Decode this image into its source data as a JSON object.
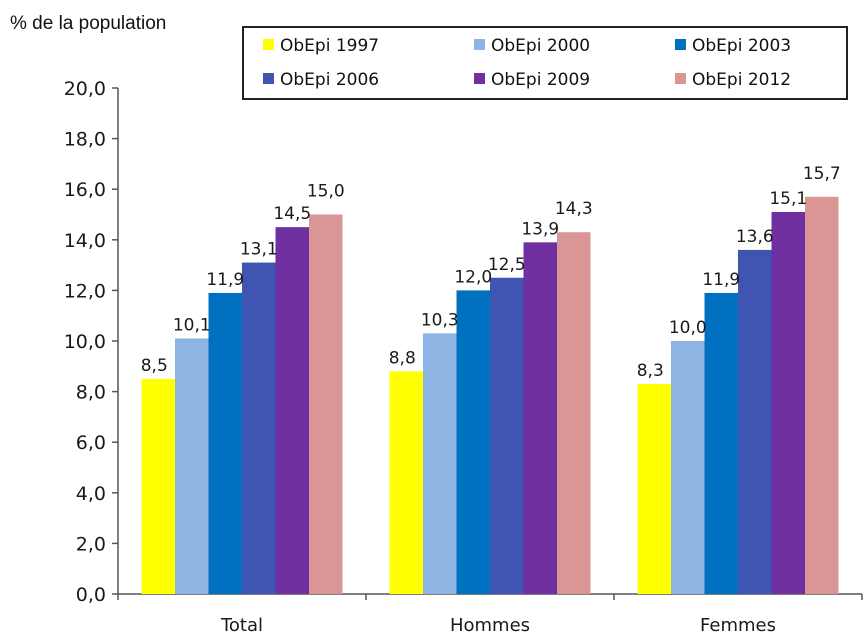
{
  "chart_data": {
    "type": "bar",
    "title": "",
    "ylabel": "% de la population",
    "xlabel": "",
    "ylim": [
      0,
      20
    ],
    "yticks": [
      "0,0",
      "2,0",
      "4,0",
      "6,0",
      "8,0",
      "10,0",
      "12,0",
      "14,0",
      "16,0",
      "18,0",
      "20,0"
    ],
    "categories": [
      "Total",
      "Hommes",
      "Femmes"
    ],
    "legend_position": "top-right",
    "grid": false,
    "series": [
      {
        "name": "ObEpi 1997",
        "color": "#ffff00",
        "values": [
          8.5,
          8.8,
          8.3
        ],
        "labels": [
          "8,5",
          "8,8",
          "8,3"
        ]
      },
      {
        "name": "ObEpi 2000",
        "color": "#8db4e2",
        "values": [
          10.1,
          10.3,
          10.0
        ],
        "labels": [
          "10,1",
          "10,3",
          "10,0"
        ]
      },
      {
        "name": "ObEpi 2003",
        "color": "#0070c0",
        "values": [
          11.9,
          12.0,
          11.9
        ],
        "labels": [
          "11,9",
          "12,0",
          "11,9"
        ]
      },
      {
        "name": "ObEpi 2006",
        "color": "#4054b2",
        "values": [
          13.1,
          12.5,
          13.6
        ],
        "labels": [
          "13,1",
          "12,5",
          "13,6"
        ]
      },
      {
        "name": "ObEpi 2009",
        "color": "#7030a0",
        "values": [
          14.5,
          13.9,
          15.1
        ],
        "labels": [
          "14,5",
          "13,9",
          "15,1"
        ]
      },
      {
        "name": "ObEpi 2012",
        "color": "#da9694",
        "values": [
          15.0,
          14.3,
          15.7
        ],
        "labels": [
          "15,0",
          "14,3",
          "15,7"
        ]
      }
    ]
  }
}
